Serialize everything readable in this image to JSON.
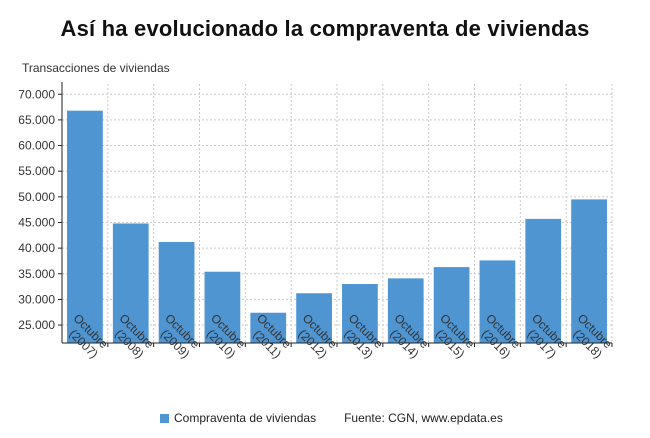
{
  "header": {
    "title": "Así ha evolucionado la compraventa de viviendas",
    "yaxis_label": "Transacciones de viviendas"
  },
  "legend": {
    "series_label": "Compraventa de viviendas",
    "source": "Fuente: CGN, www.epdata.es"
  },
  "colors": {
    "bar": "#4f95d2",
    "grid": "#c9c9c9",
    "axis": "#222222"
  },
  "chart_data": {
    "type": "bar",
    "title": "Así ha evolucionado la compraventa de viviendas",
    "xlabel": "",
    "ylabel": "Transacciones de viviendas",
    "categories": [
      "Octubre (2007)",
      "Octubre (2008)",
      "Octubre (2009)",
      "Octubre (2010)",
      "Octubre (2011)",
      "Octubre (2012)",
      "Octubre (2013)",
      "Octubre (2014)",
      "Octubre (2015)",
      "Octubre (2016)",
      "Octubre (2017)",
      "Octubre (2018)"
    ],
    "series": [
      {
        "name": "Compraventa de viviendas",
        "values": [
          66800,
          44800,
          41200,
          35400,
          27400,
          31200,
          33000,
          34100,
          36300,
          37600,
          45700,
          49500
        ]
      }
    ],
    "ylim": [
      21500,
      72000
    ],
    "yticks": [
      25000,
      30000,
      35000,
      40000,
      45000,
      50000,
      55000,
      60000,
      65000,
      70000
    ],
    "ytick_labels": [
      "25.000",
      "30.000",
      "35.000",
      "40.000",
      "45.000",
      "50.000",
      "55.000",
      "60.000",
      "65.000",
      "70.000"
    ],
    "grid": true,
    "legend_position": "bottom"
  }
}
